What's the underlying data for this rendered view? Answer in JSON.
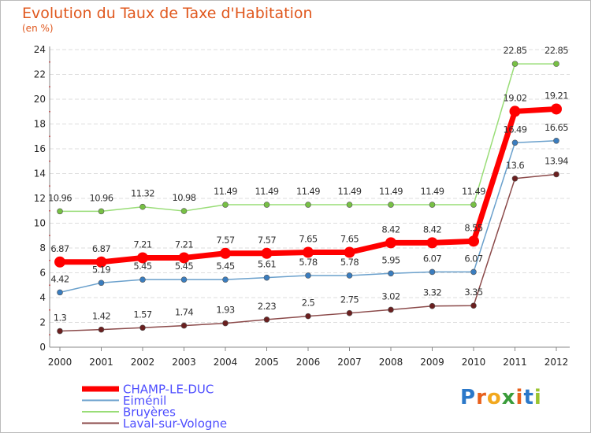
{
  "title": "Evolution du Taux de Taxe d'Habitation",
  "subtitle": "(en %)",
  "logo": {
    "letters": [
      "P",
      "r",
      "o",
      "x",
      "i",
      "t",
      "i"
    ],
    "colors": [
      "#2b78c9",
      "#e8601c",
      "#f2a81e",
      "#3a9c3a",
      "#e8601c",
      "#2b78c9",
      "#9ac430"
    ]
  },
  "chart_data": {
    "type": "line",
    "title": "Evolution du Taux de Taxe d'Habitation",
    "ylabel": "(en %)",
    "xlabel": "",
    "x": [
      "2000",
      "2001",
      "2002",
      "2003",
      "2004",
      "2005",
      "2006",
      "2007",
      "2008",
      "2009",
      "2010",
      "2011",
      "2012"
    ],
    "ylim": [
      0,
      24
    ],
    "yticks": [
      "0",
      "2",
      "4",
      "6",
      "8",
      "10",
      "12",
      "14",
      "16",
      "18",
      "20",
      "22",
      "24"
    ],
    "grid": "horizontal",
    "legend": "bottom-left",
    "series": [
      {
        "name": "CHAMP-LE-DUC",
        "color": "#ff0000",
        "marker_color": "#ff0000",
        "legend_color": "#4d4dff",
        "values": [
          6.87,
          6.87,
          7.21,
          7.21,
          7.57,
          7.57,
          7.65,
          7.65,
          8.42,
          8.42,
          8.55,
          19.02,
          19.21
        ],
        "labels": [
          "6.87",
          "6.87",
          "7.21",
          "7.21",
          "7.57",
          "7.57",
          "7.65",
          "7.65",
          "8.42",
          "8.42",
          "8.55",
          "19.02",
          "19.21"
        ]
      },
      {
        "name": "Eiménil",
        "color": "#6aa0cc",
        "marker_color": "#3a7dbf",
        "legend_color": "#4d4dff",
        "values": [
          4.42,
          5.19,
          5.45,
          5.45,
          5.45,
          5.61,
          5.78,
          5.78,
          5.95,
          6.07,
          6.07,
          16.49,
          16.65
        ],
        "labels": [
          "4.42",
          "5.19",
          "5.45",
          "5.45",
          "5.45",
          "5.61",
          "5.78",
          "5.78",
          "5.95",
          "6.07",
          "6.07",
          "16.49",
          "16.65"
        ]
      },
      {
        "name": "Bruyères",
        "color": "#99dd77",
        "marker_color": "#77c044",
        "legend_color": "#4d4dff",
        "values": [
          10.96,
          10.96,
          11.32,
          10.98,
          11.49,
          11.49,
          11.49,
          11.49,
          11.49,
          11.49,
          11.49,
          22.85,
          22.85
        ],
        "labels": [
          "10.96",
          "10.96",
          "11.32",
          "10.98",
          "11.49",
          "11.49",
          "11.49",
          "11.49",
          "11.49",
          "11.49",
          "11.49",
          "22.85",
          "22.85"
        ]
      },
      {
        "name": "Laval-sur-Vologne",
        "color": "#8b4a4a",
        "marker_color": "#6a1f1f",
        "legend_color": "#4d4dff",
        "values": [
          1.3,
          1.42,
          1.57,
          1.74,
          1.93,
          2.23,
          2.5,
          2.75,
          3.02,
          3.32,
          3.35,
          13.6,
          13.94
        ],
        "labels": [
          "1.3",
          "1.42",
          "1.57",
          "1.74",
          "1.93",
          "2.23",
          "2.5",
          "2.75",
          "3.02",
          "3.32",
          "3.35",
          "13.6",
          "13.94"
        ]
      }
    ]
  }
}
